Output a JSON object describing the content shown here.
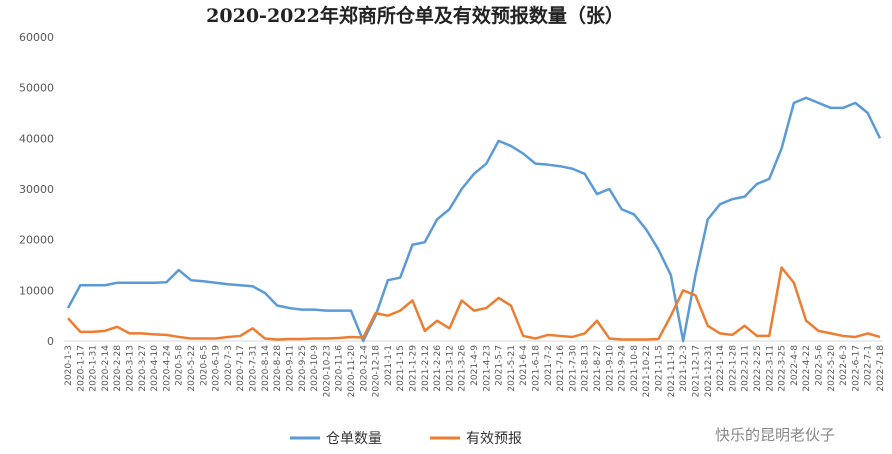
{
  "chart_data": {
    "type": "line",
    "title": "2020-2022年郑商所仓单及有效预报数量（张）",
    "watermark": "快乐的昆明老伙子",
    "categories": [
      "2020-1-3",
      "2020-1-17",
      "2020-1-31",
      "2020-2-14",
      "2020-2-28",
      "2020-3-13",
      "2020-3-27",
      "2020-4-10",
      "2020-4-24",
      "2020-5-8",
      "2020-5-22",
      "2020-6-5",
      "2020-6-19",
      "2020-7-3",
      "2020-7-17",
      "2020-7-31",
      "2020-8-14",
      "2020-8-28",
      "2020-9-11",
      "2020-9-25",
      "2020-10-9",
      "2020-10-23",
      "2020-11-6",
      "2020-11-20",
      "2020-12-4",
      "2020-12-18",
      "2021-1-1",
      "2021-1-15",
      "2021-1-29",
      "2021-2-12",
      "2021-2-26",
      "2021-3-12",
      "2021-3-26",
      "2021-4-9",
      "2021-4-23",
      "2021-5-7",
      "2021-5-21",
      "2021-6-4",
      "2021-6-18",
      "2021-7-2",
      "2021-7-16",
      "2021-7-30",
      "2021-8-13",
      "2021-8-27",
      "2021-9-10",
      "2021-9-24",
      "2021-10-8",
      "2021-10-22",
      "2021-11-5",
      "2021-11-19",
      "2021-12-3",
      "2021-12-17",
      "2021-12-31",
      "2022-1-14",
      "2022-1-28",
      "2022-2-11",
      "2022-2-25",
      "2022-3-11",
      "2022-3-25",
      "2022-4-8",
      "2022-4-22",
      "2022-5-6",
      "2022-5-20",
      "2022-6-3",
      "2022-6-17",
      "2022-7-1",
      "2022-7-18"
    ],
    "series": [
      {
        "name": "仓单数量",
        "color": "#5b9bd5",
        "values": [
          6500,
          11000,
          11000,
          11000,
          11500,
          11500,
          11500,
          11500,
          11600,
          14000,
          12000,
          11800,
          11500,
          11200,
          11000,
          10800,
          9500,
          7000,
          6500,
          6200,
          6200,
          6000,
          6000,
          6000,
          0,
          5000,
          12000,
          12500,
          19000,
          19500,
          24000,
          26000,
          30000,
          33000,
          35000,
          39500,
          38500,
          37000,
          35000,
          34800,
          34500,
          34000,
          33000,
          29000,
          30000,
          26000,
          25000,
          22000,
          18000,
          13000,
          0,
          13000,
          24000,
          27000,
          28000,
          28500,
          31000,
          32000,
          38000,
          47000,
          48000,
          47000,
          46000,
          46000,
          47000,
          45000,
          40000
        ]
      },
      {
        "name": "有效预报",
        "color": "#ed7d31",
        "values": [
          4500,
          1800,
          1800,
          2000,
          2800,
          1500,
          1500,
          1300,
          1200,
          800,
          500,
          500,
          500,
          800,
          1000,
          2500,
          500,
          300,
          400,
          400,
          500,
          500,
          600,
          800,
          700,
          5500,
          5000,
          6000,
          8000,
          2000,
          4000,
          2500,
          8000,
          6000,
          6500,
          8500,
          7000,
          1000,
          500,
          1200,
          1000,
          800,
          1500,
          4000,
          500,
          300,
          300,
          300,
          400,
          5000,
          10000,
          9000,
          3000,
          1500,
          1200,
          3000,
          1000,
          1000,
          14500,
          11500,
          4000,
          2000,
          1500,
          1000,
          800,
          1500,
          800
        ]
      }
    ],
    "ylim": [
      0,
      60000
    ],
    "yticks": [
      0,
      10000,
      20000,
      30000,
      40000,
      50000,
      60000
    ],
    "grid": false
  }
}
